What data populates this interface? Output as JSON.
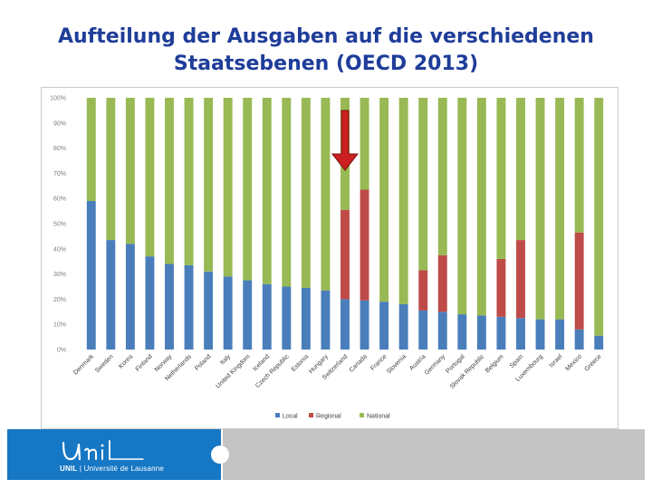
{
  "title": {
    "line1": "Aufteilung der Ausgaben auf die verschiedenen",
    "line2": "Staatsebenen (OECD 2013)"
  },
  "footer": {
    "logo_short": "UNIL",
    "logo_separator": "|",
    "logo_full": "Université de Lausanne"
  },
  "colors": {
    "local": "#4a7ebb",
    "regional": "#be4b48",
    "national": "#98b954",
    "arrow": "#cc1f1f",
    "title": "#1f3d99"
  },
  "chart_data": {
    "type": "bar",
    "stacked": true,
    "title": "",
    "xlabel": "",
    "ylabel": "",
    "ylim": [
      0,
      100
    ],
    "yticks": [
      "0%",
      "10%",
      "20%",
      "30%",
      "40%",
      "50%",
      "60%",
      "70%",
      "80%",
      "90%",
      "100%"
    ],
    "categories": [
      "Denmark",
      "Sweden",
      "Korea",
      "Finland",
      "Norway",
      "Netherlands",
      "Poland",
      "Italy",
      "United Kingdom",
      "Iceland",
      "Czech Republic",
      "Estonia",
      "Hungary",
      "Switzerland",
      "Canada",
      "France",
      "Slovenia",
      "Austria",
      "Germany",
      "Portugal",
      "Slovak Republic",
      "Belgium",
      "Spain",
      "Luxembourg",
      "Israel",
      "Mexico",
      "Greece"
    ],
    "series": [
      {
        "name": "Local",
        "values": [
          59,
          43.5,
          42,
          37,
          34,
          33.5,
          31,
          29,
          27.5,
          26,
          25,
          24.5,
          23.5,
          20,
          19.5,
          19,
          18,
          15.5,
          15,
          14,
          13.5,
          13,
          12.5,
          12,
          12,
          8,
          5.5
        ]
      },
      {
        "name": "Regional",
        "values": [
          0,
          0,
          0,
          0,
          0,
          0,
          0,
          0,
          0,
          0,
          0,
          0,
          0,
          35.5,
          44,
          0,
          0,
          16,
          22.5,
          0,
          0,
          23,
          31,
          0,
          0,
          38.5,
          0
        ]
      },
      {
        "name": "National",
        "values": [
          41,
          56.5,
          58,
          63,
          66,
          66.5,
          69,
          71,
          72.5,
          74,
          75,
          75.5,
          76.5,
          44.5,
          36.5,
          81,
          82,
          68.5,
          62.5,
          86,
          86.5,
          64,
          56.5,
          88,
          88,
          53.5,
          94.5
        ]
      }
    ],
    "legend": [
      "Local",
      "Regional",
      "National"
    ],
    "legend_position": "bottom",
    "annotation": {
      "type": "arrow",
      "target": "Switzerland",
      "direction": "down"
    }
  }
}
